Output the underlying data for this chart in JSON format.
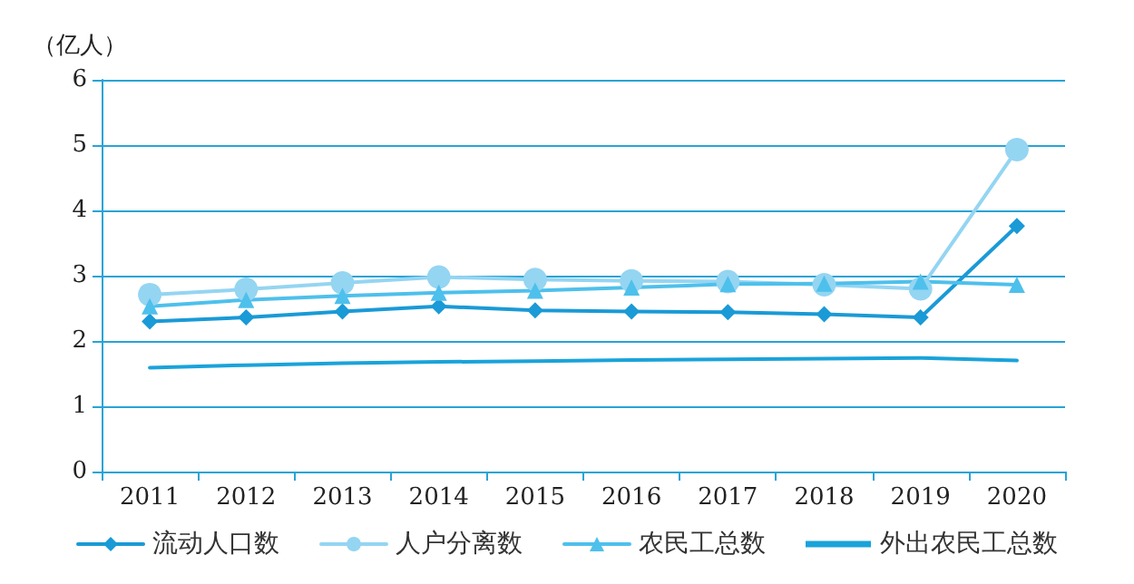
{
  "chart_data": {
    "type": "line",
    "ylabel": "（亿人）",
    "categories": [
      "2011",
      "2012",
      "2013",
      "2014",
      "2015",
      "2016",
      "2017",
      "2018",
      "2019",
      "2020"
    ],
    "series": [
      {
        "name": "流动人口数",
        "color": "#1a9ad6",
        "marker": "diamond",
        "values": [
          2.3,
          2.36,
          2.45,
          2.53,
          2.47,
          2.45,
          2.44,
          2.41,
          2.36,
          3.76
        ]
      },
      {
        "name": "人户分离数",
        "color": "#94d5f2",
        "marker": "circle",
        "values": [
          2.71,
          2.79,
          2.89,
          2.98,
          2.94,
          2.92,
          2.91,
          2.86,
          2.8,
          4.93
        ]
      },
      {
        "name": "农民工总数",
        "color": "#4ec0ec",
        "marker": "triangle",
        "values": [
          2.53,
          2.63,
          2.69,
          2.74,
          2.77,
          2.82,
          2.87,
          2.88,
          2.91,
          2.86
        ]
      },
      {
        "name": "外出农民工总数",
        "color": "#1aa3da",
        "marker": "none",
        "values": [
          1.59,
          1.63,
          1.66,
          1.68,
          1.69,
          1.71,
          1.72,
          1.73,
          1.74,
          1.7
        ]
      }
    ],
    "ylim": [
      0,
      6
    ],
    "yticks": [
      0,
      1,
      2,
      3,
      4,
      5,
      6
    ],
    "grid": "y",
    "legend": "bottom"
  }
}
